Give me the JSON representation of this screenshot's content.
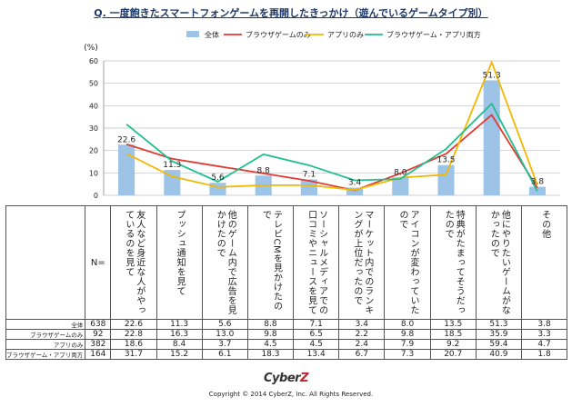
{
  "title": "Q. 一度飽きたスマートフォンゲームを再開したきっかけ（遊んでいるゲームタイプ別）",
  "chart_data": {
    "type": "bar",
    "ylabel": "(%)",
    "ylim": [
      0,
      60
    ],
    "yticks": [
      0,
      10,
      20,
      30,
      40,
      50,
      60
    ],
    "grid": true,
    "legend_position": "top",
    "categories": [
      "友人など身近な人がやっているのを見て",
      "プッシュ通知を見て",
      "他のゲーム内で広告を見かけたので",
      "テレビCMを見かけたので",
      "ソーシャルメディアでの口コミやニュースを見て",
      "マーケット内でのランキングが上位だったので",
      "アイコンが変わっていたので",
      "特典がたまってそうだったので",
      "他にやりたいゲームがなかったので",
      "その他"
    ],
    "series": [
      {
        "name": "全体",
        "kind": "bar",
        "color": "#9dc3e6",
        "n": 638,
        "values": [
          22.6,
          11.3,
          5.6,
          8.8,
          7.1,
          3.4,
          8.0,
          13.5,
          51.3,
          3.8
        ]
      },
      {
        "name": "ブラウザゲームのみ",
        "kind": "line",
        "color": "#e03a32",
        "n": 92,
        "values": [
          22.8,
          16.3,
          13.0,
          9.8,
          6.5,
          2.2,
          9.8,
          18.5,
          35.9,
          3.3
        ]
      },
      {
        "name": "アプリのみ",
        "kind": "line",
        "color": "#f2b800",
        "n": 382,
        "values": [
          18.6,
          8.4,
          3.7,
          4.5,
          4.5,
          2.4,
          7.9,
          9.2,
          59.4,
          4.7
        ]
      },
      {
        "name": "ブラウザゲーム・アプリ両方",
        "kind": "line",
        "color": "#1fbf8f",
        "n": 164,
        "values": [
          31.7,
          15.2,
          6.1,
          18.3,
          13.4,
          6.7,
          7.3,
          20.7,
          40.9,
          1.8
        ]
      }
    ]
  },
  "table": {
    "n_header": "N=",
    "rows": [
      {
        "label": "全体",
        "n": "638",
        "values": [
          "22.6",
          "11.3",
          "5.6",
          "8.8",
          "7.1",
          "3.4",
          "8.0",
          "13.5",
          "51.3",
          "3.8"
        ]
      },
      {
        "label": "ブラウザゲームのみ",
        "n": "92",
        "values": [
          "22.8",
          "16.3",
          "13.0",
          "9.8",
          "6.5",
          "2.2",
          "9.8",
          "18.5",
          "35.9",
          "3.3"
        ]
      },
      {
        "label": "アプリのみ",
        "n": "382",
        "values": [
          "18.6",
          "8.4",
          "3.7",
          "4.5",
          "4.5",
          "2.4",
          "7.9",
          "9.2",
          "59.4",
          "4.7"
        ]
      },
      {
        "label": "ブラウザゲーム・アプリ両方",
        "n": "164",
        "values": [
          "31.7",
          "15.2",
          "6.1",
          "18.3",
          "13.4",
          "6.7",
          "7.3",
          "20.7",
          "40.9",
          "1.8"
        ]
      }
    ]
  },
  "logo": {
    "text": "CyberZ"
  },
  "copyright": "Copyright © 2014 CyberZ, Inc.  All Rights Reserved."
}
